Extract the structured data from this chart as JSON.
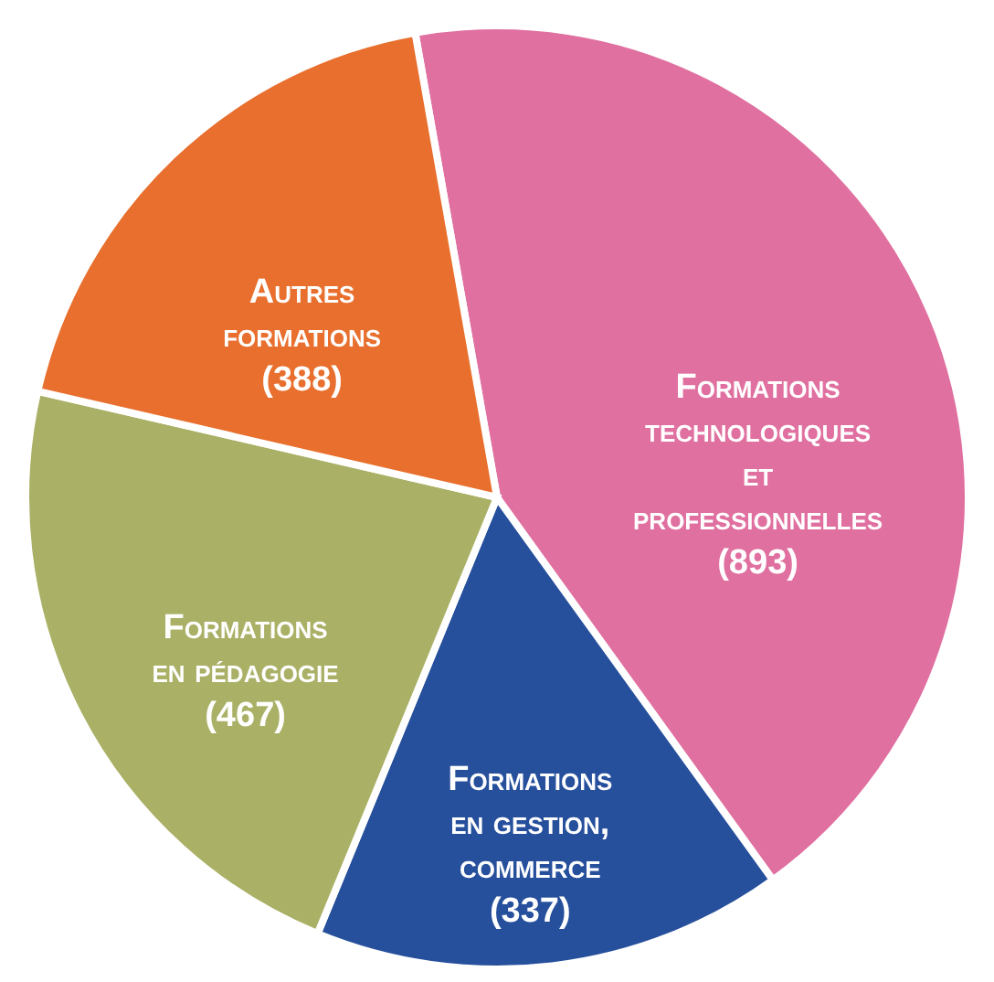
{
  "chart_data": {
    "type": "pie",
    "categories": [
      "Formations technologiques et professionnelles",
      "Formations en gestion, commerce",
      "Formations en pédagogie",
      "Autres formations"
    ],
    "values": [
      893,
      337,
      467,
      388
    ],
    "value_labels": [
      "(893)",
      "(337)",
      "(467)",
      "(388)"
    ],
    "colors": [
      "#e070a0",
      "#264f9c",
      "#aab065",
      "#e86f2d"
    ]
  }
}
